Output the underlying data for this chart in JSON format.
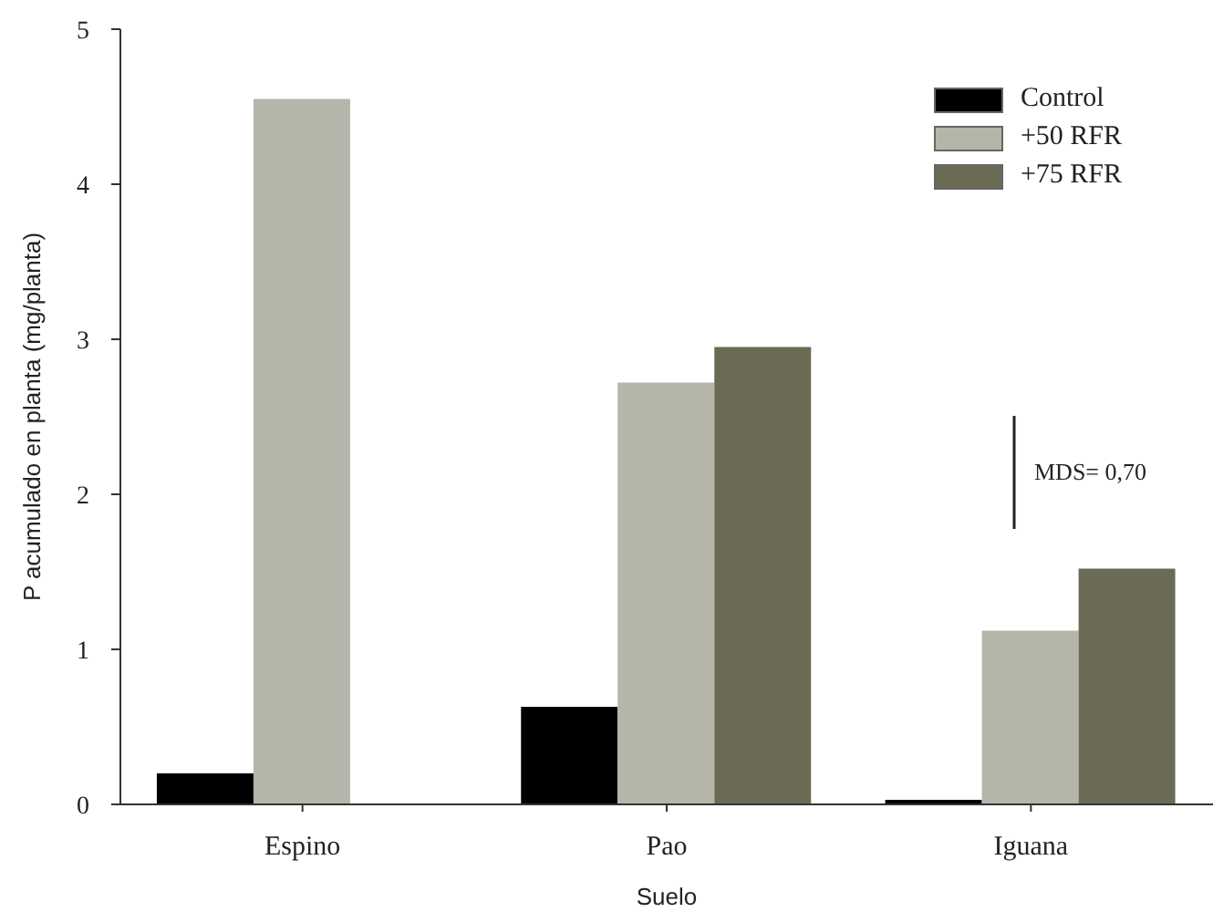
{
  "chart_data": {
    "type": "bar",
    "xlabel": "Suelo",
    "ylabel": "P acumulado en planta (mg/planta)",
    "categories": [
      "Espino",
      "Pao",
      "Iguana"
    ],
    "series": [
      {
        "name": "Control",
        "color": "#000000",
        "values": [
          0.2,
          0.63,
          0.03
        ]
      },
      {
        "name": "+50 RFR",
        "color": "#b5b5a9",
        "values": [
          4.55,
          2.72,
          1.12
        ]
      },
      {
        "name": "+75 RFR",
        "color": "#6b6b55",
        "values": [
          null,
          2.95,
          1.52
        ]
      }
    ],
    "ylim": [
      0,
      5
    ],
    "yticks": [
      0,
      1,
      2,
      3,
      4,
      5
    ],
    "grid": false,
    "legend": "top right",
    "annotations": [
      "MDS= 0,70"
    ]
  }
}
